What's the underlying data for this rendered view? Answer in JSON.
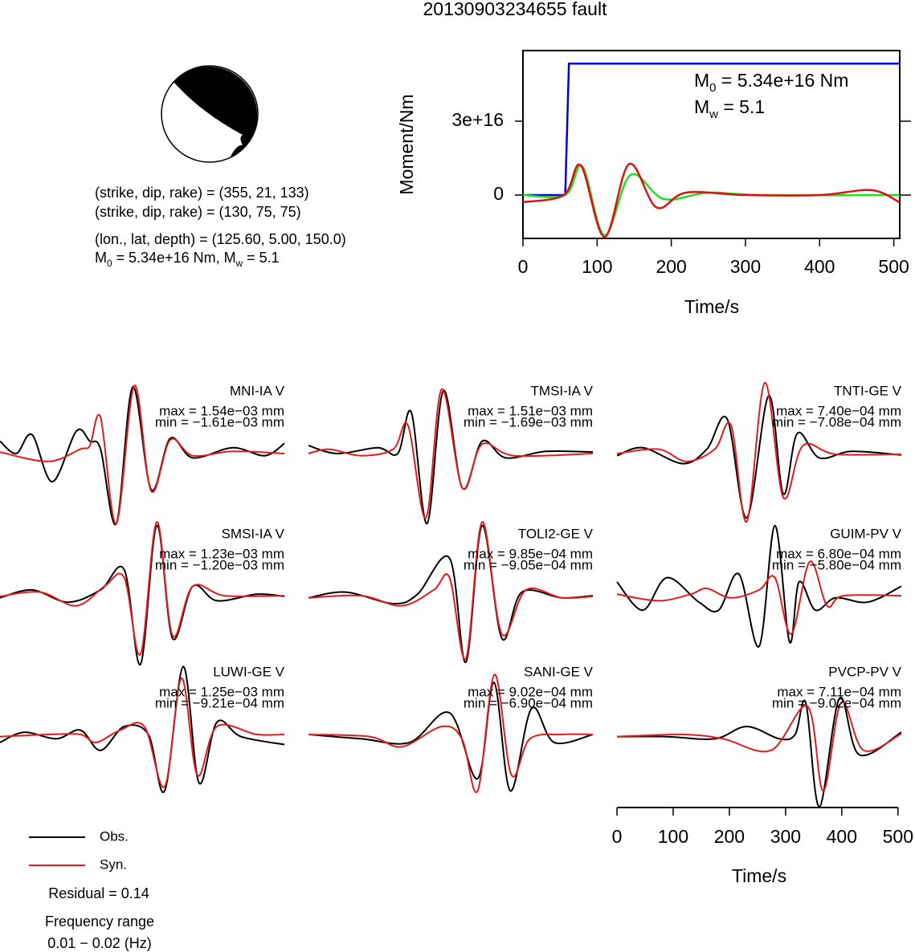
{
  "title": "20130903234655 fault",
  "focal": {
    "lines": [
      "(strike, dip, rake) = (355, 21, 133)",
      "(strike, dip, rake) = (130, 75, 75)",
      "(lon., lat, depth) = (125.60, 5.00, 150.0)"
    ],
    "moment": [
      {
        "text": "M"
      },
      {
        "sub": "0"
      },
      {
        "text": " = 5.34e+16 Nm, M"
      },
      {
        "sub": "w"
      },
      {
        "text": " = 5.1"
      }
    ]
  },
  "residual": "Residual = 0.14",
  "frequency": [
    "Frequency range",
    "0.01 − 0.02 (Hz)"
  ],
  "chart_data": [
    {
      "type": "line",
      "xlabel": "Time/s",
      "ylabel": "Moment/Nm",
      "xlim": [
        0,
        508
      ],
      "ylim": [
        -1.76e+16,
        5.87e+16
      ],
      "xticks": [
        0,
        100,
        200,
        300,
        400,
        500
      ],
      "yticks": [
        {
          "value": 0,
          "label": "0"
        },
        {
          "value": 3e+16,
          "label": "3e+16"
        }
      ],
      "annotations": [
        [
          {
            "text": "M"
          },
          {
            "sub": "0"
          },
          {
            "text": " = 5.34e+16 Nm"
          }
        ],
        [
          {
            "text": "M"
          },
          {
            "sub": "w"
          },
          {
            "text": " = 5.1"
          }
        ]
      ],
      "series": [
        {
          "color": "#0000dd",
          "x": [
            0,
            57,
            62,
            508
          ],
          "values": [
            0,
            0,
            5.34e+16,
            5.34e+16
          ]
        },
        {
          "color": "#22dd22",
          "smooth": true,
          "x": [
            0,
            57,
            80,
            110,
            145,
            190,
            250,
            320,
            508
          ],
          "values": [
            0,
            0,
            1.17e+16,
            -1.63e+16,
            8200000000000000.0,
            -1600000000000000.0,
            1000000000000000.0,
            0,
            0
          ]
        },
        {
          "color": "#dd1111",
          "smooth": true,
          "x": [
            0,
            55,
            78,
            110,
            143,
            180,
            220,
            300,
            400,
            470,
            508
          ],
          "values": [
            -2900000000000000.0,
            0,
            1.2e+16,
            -1.7e+16,
            1.26e+16,
            -5000000000000000.0,
            1000000000000000.0,
            0,
            0,
            2000000000000000.0,
            -3000000000000000.0
          ]
        }
      ]
    },
    {
      "type": "line",
      "station": "MNI-IA V",
      "max": "max = 1.54e−03 mm",
      "min": "min = −1.61e−03 mm",
      "xlim": [
        0,
        506
      ],
      "ylim": [
        -1,
        1
      ],
      "series": [
        {
          "name": "Obs.",
          "color": "#000000",
          "x": [
            0,
            29,
            57,
            93,
            136,
            160,
            179,
            207,
            236,
            269,
            303,
            343,
            414,
            471,
            506
          ],
          "values": [
            0.17,
            0,
            0.26,
            -0.39,
            0.31,
            0.17,
            0.06,
            -0.97,
            0.92,
            -0.5,
            0.21,
            -0.06,
            0.08,
            -0.03,
            0.14
          ]
        },
        {
          "name": "Syn.",
          "color": "#e41a1c",
          "x": [
            0,
            86,
            143,
            160,
            179,
            207,
            239,
            269,
            303,
            343,
            414,
            506
          ],
          "values": [
            0.02,
            -0.11,
            0.06,
            0.11,
            0.5,
            -0.97,
            0.94,
            -0.52,
            0.19,
            -0.03,
            0.03,
            0
          ]
        }
      ]
    },
    {
      "type": "line",
      "station": "TMSI-IA V",
      "max": "max = 1.51e−03 mm",
      "min": "min = −1.69e−03 mm",
      "xlim": [
        0,
        506
      ],
      "ylim": [
        -1,
        1
      ],
      "series": [
        {
          "name": "Obs.",
          "color": "#000000",
          "x": [
            0,
            51,
            123,
            159,
            183,
            211,
            240,
            274,
            309,
            351,
            423,
            506
          ],
          "values": [
            0.11,
            0,
            0.08,
            0,
            0.57,
            -0.97,
            0.87,
            -0.48,
            0.17,
            -0.06,
            0.03,
            0.02
          ]
        },
        {
          "name": "Syn.",
          "color": "#e41a1c",
          "x": [
            0,
            37,
            94,
            151,
            177,
            209,
            237,
            274,
            309,
            366,
            506
          ],
          "values": [
            0,
            0.06,
            -0.03,
            0.06,
            0.39,
            -0.89,
            0.89,
            -0.48,
            0.13,
            -0.03,
            0
          ]
        }
      ]
    },
    {
      "type": "line",
      "station": "TNTI-GE V",
      "max": "max = 7.40e−04 mm",
      "min": "min = −7.08e−04 mm",
      "xlim": [
        0,
        506
      ],
      "ylim": [
        -1,
        1
      ],
      "series": [
        {
          "name": "Obs.",
          "color": "#000000",
          "x": [
            0,
            46,
            117,
            160,
            196,
            231,
            270,
            296,
            321,
            360,
            417,
            506
          ],
          "values": [
            -0.03,
            0.08,
            -0.14,
            0.06,
            0.48,
            -0.89,
            0.8,
            -0.56,
            0.28,
            -0.06,
            0.03,
            -0.02
          ]
        },
        {
          "name": "Syn.",
          "color": "#e41a1c",
          "x": [
            0,
            74,
            124,
            174,
            203,
            231,
            263,
            296,
            331,
            389,
            506
          ],
          "values": [
            0,
            0.06,
            -0.11,
            0.06,
            0.39,
            -0.94,
            0.98,
            -0.61,
            0.11,
            -0.01,
            -0.01
          ]
        }
      ]
    },
    {
      "type": "line",
      "station": "SMSI-IA V",
      "max": "max = 1.23e−03 mm",
      "min": "min = −1.20e−03 mm",
      "xlim": [
        0,
        506
      ],
      "ylim": [
        -1,
        1
      ],
      "series": [
        {
          "name": "Obs.",
          "color": "#000000",
          "x": [
            0,
            57,
            121,
            179,
            221,
            250,
            279,
            307,
            343,
            386,
            457,
            506
          ],
          "values": [
            -0.02,
            0.09,
            -0.08,
            0.09,
            0.37,
            -0.94,
            0.98,
            -0.58,
            0.14,
            -0.06,
            0.03,
            0
          ]
        },
        {
          "name": "Syn.",
          "color": "#e41a1c",
          "x": [
            0,
            71,
            136,
            186,
            221,
            250,
            279,
            307,
            343,
            400,
            506
          ],
          "values": [
            0,
            0.06,
            -0.13,
            0.14,
            0.26,
            -0.8,
            1.03,
            -0.54,
            0.14,
            0.01,
            0.01
          ]
        }
      ]
    },
    {
      "type": "line",
      "station": "TOLI2-GE V",
      "max": "max = 9.85e−04 mm",
      "min": "min = −9.05e−04 mm",
      "xlim": [
        0,
        506
      ],
      "ylim": [
        -1,
        1
      ],
      "series": [
        {
          "name": "Obs.",
          "color": "#000000",
          "x": [
            0,
            66,
            151,
            194,
            251,
            280,
            309,
            344,
            380,
            451,
            506
          ],
          "values": [
            -0.02,
            0.06,
            -0.1,
            0.03,
            0.53,
            -0.91,
            0.98,
            -0.58,
            0.06,
            -0.02,
            0.01
          ]
        },
        {
          "name": "Syn.",
          "color": "#e41a1c",
          "x": [
            0,
            94,
            166,
            223,
            251,
            280,
            309,
            344,
            387,
            451,
            506
          ],
          "values": [
            -0.02,
            0.01,
            -0.13,
            0.09,
            0.26,
            -0.86,
            1.03,
            -0.52,
            0.09,
            -0.02,
            0
          ]
        }
      ]
    },
    {
      "type": "line",
      "station": "GUIM-PV V",
      "max": "max = 6.80e−04 mm",
      "min": "min = −5.80e−04 mm",
      "xlim": [
        0,
        506
      ],
      "ylim": [
        -1,
        1
      ],
      "series": [
        {
          "name": "Obs.",
          "color": "#000000",
          "x": [
            0,
            46,
            89,
            146,
            181,
            217,
            253,
            281,
            307,
            324,
            353,
            389,
            446,
            506
          ],
          "values": [
            0.2,
            -0.19,
            0.26,
            -0.08,
            -0.19,
            0.31,
            -0.69,
            0.98,
            -0.63,
            0.2,
            -0.19,
            -0.02,
            -0.08,
            0.14
          ]
        },
        {
          "name": "Syn.",
          "color": "#e41a1c",
          "x": [
            0,
            74,
            131,
            160,
            203,
            253,
            281,
            310,
            343,
            374,
            403,
            506
          ],
          "values": [
            0.03,
            -0.06,
            0.03,
            0.11,
            -0.02,
            0.09,
            0.26,
            -0.52,
            0.48,
            -0.13,
            0.01,
            0.01
          ]
        }
      ]
    },
    {
      "type": "line",
      "station": "LUWI-GE V",
      "max": "max = 1.25e−03 mm",
      "min": "min = −9.21e−04 mm",
      "xlim": [
        0,
        506
      ],
      "ylim": [
        -1,
        1
      ],
      "series": [
        {
          "name": "Obs.",
          "color": "#000000",
          "x": [
            0,
            43,
            100,
            143,
            179,
            221,
            264,
            293,
            326,
            354,
            386,
            429,
            506
          ],
          "values": [
            -0.11,
            0.03,
            -0.06,
            0.06,
            -0.22,
            0.11,
            0,
            -0.78,
            0.94,
            -0.67,
            0.17,
            -0.03,
            -0.14
          ]
        },
        {
          "name": "Syn.",
          "color": "#e41a1c",
          "x": [
            0,
            86,
            143,
            171,
            214,
            257,
            293,
            323,
            351,
            386,
            457,
            506
          ],
          "values": [
            -0.03,
            0,
            0,
            -0.11,
            0.06,
            0.11,
            -0.72,
            0.78,
            -0.56,
            0.11,
            0,
            0
          ]
        }
      ]
    },
    {
      "type": "line",
      "station": "SANI-GE V",
      "max": "max = 9.02e−04 mm",
      "min": "min = −6.90e−04 mm",
      "xlim": [
        0,
        506
      ],
      "ylim": [
        -1,
        1
      ],
      "series": [
        {
          "name": "Obs.",
          "color": "#000000",
          "x": [
            0,
            94,
            180,
            251,
            301,
            330,
            359,
            397,
            437,
            506
          ],
          "values": [
            0,
            -0.06,
            -0.11,
            0.3,
            -0.61,
            0.72,
            -0.78,
            0.36,
            -0.11,
            0
          ]
        },
        {
          "name": "Syn.",
          "color": "#e41a1c",
          "x": [
            0,
            109,
            166,
            237,
            273,
            301,
            331,
            361,
            394,
            451,
            506
          ],
          "values": [
            0,
            -0.03,
            -0.17,
            0.11,
            -0.06,
            -0.78,
            0.83,
            -0.56,
            -0.06,
            0,
            0
          ]
        }
      ]
    },
    {
      "type": "line",
      "station": "PVCP-PV V",
      "max": "max = 7.11e−04 mm",
      "min": "min = −9.02e−04 mm",
      "xlim": [
        0,
        506
      ],
      "ylim": [
        -1,
        1
      ],
      "xticks": [
        0,
        100,
        200,
        300,
        400,
        500
      ],
      "xlabel": "Time/s",
      "series": [
        {
          "name": "Obs.",
          "color": "#000000",
          "x": [
            0,
            89,
            174,
            231,
            289,
            317,
            336,
            360,
            396,
            431,
            506
          ],
          "values": [
            -0.03,
            -0.03,
            -0.06,
            0.11,
            -0.06,
            0,
            0.44,
            -1,
            0.5,
            -0.28,
            0.03
          ]
        },
        {
          "name": "Syn.",
          "color": "#e41a1c",
          "x": [
            0,
            117,
            189,
            274,
            339,
            367,
            399,
            439,
            506
          ],
          "values": [
            -0.03,
            0,
            -0.06,
            -0.22,
            0.39,
            -0.78,
            0.44,
            -0.22,
            0.01
          ]
        }
      ]
    }
  ]
}
